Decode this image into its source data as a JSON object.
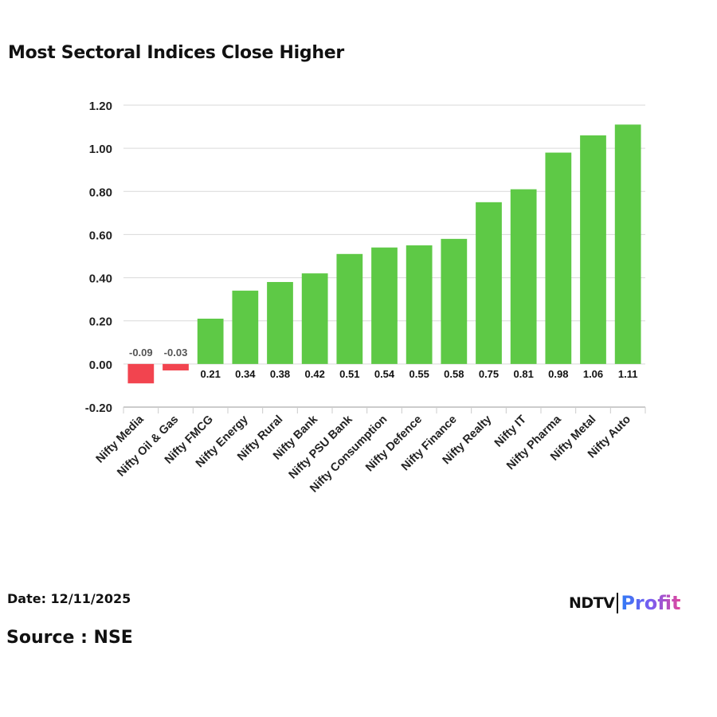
{
  "header": {
    "title": "Most Sectoral Indices Close Higher"
  },
  "footer": {
    "date": "Date: 12/11/2025",
    "source": "Source : NSE"
  },
  "logo": {
    "ndtv": "NDTV",
    "profit": "Profit"
  },
  "colors": {
    "positive": "#5ec946",
    "negative": "#f2444f",
    "grid": "#d9d9d9",
    "text": "#222222"
  },
  "chart_data": {
    "type": "bar",
    "title": "Most Sectoral Indices Close Higher",
    "xlabel": "",
    "ylabel": "",
    "ylim": [
      -0.2,
      1.2
    ],
    "yticks": [
      -0.2,
      0.0,
      0.2,
      0.4,
      0.6,
      0.8,
      1.0,
      1.2
    ],
    "ytick_labels": [
      "-0.20",
      "0.00",
      "0.20",
      "0.40",
      "0.60",
      "0.80",
      "1.00",
      "1.20"
    ],
    "grid": true,
    "legend": null,
    "categories": [
      "Nifty Media",
      "Nifty Oil & Gas",
      "Nifty FMCG",
      "Nifty Energy",
      "Nifty Rural",
      "Nifty Bank",
      "Nifty PSU Bank",
      "Nifty Consumption",
      "Nifty Defence",
      "Nifty Finance",
      "Nifty Realty",
      "Nifty IT",
      "Nifty Pharma",
      "Nifty Metal",
      "Nifty Auto"
    ],
    "values": [
      -0.09,
      -0.03,
      0.21,
      0.34,
      0.38,
      0.42,
      0.51,
      0.54,
      0.55,
      0.58,
      0.75,
      0.81,
      0.98,
      1.06,
      1.11
    ],
    "value_labels": [
      "-0.09",
      "-0.03",
      "0.21",
      "0.34",
      "0.38",
      "0.42",
      "0.51",
      "0.54",
      "0.55",
      "0.58",
      "0.75",
      "0.81",
      "0.98",
      "1.06",
      "1.11"
    ]
  }
}
